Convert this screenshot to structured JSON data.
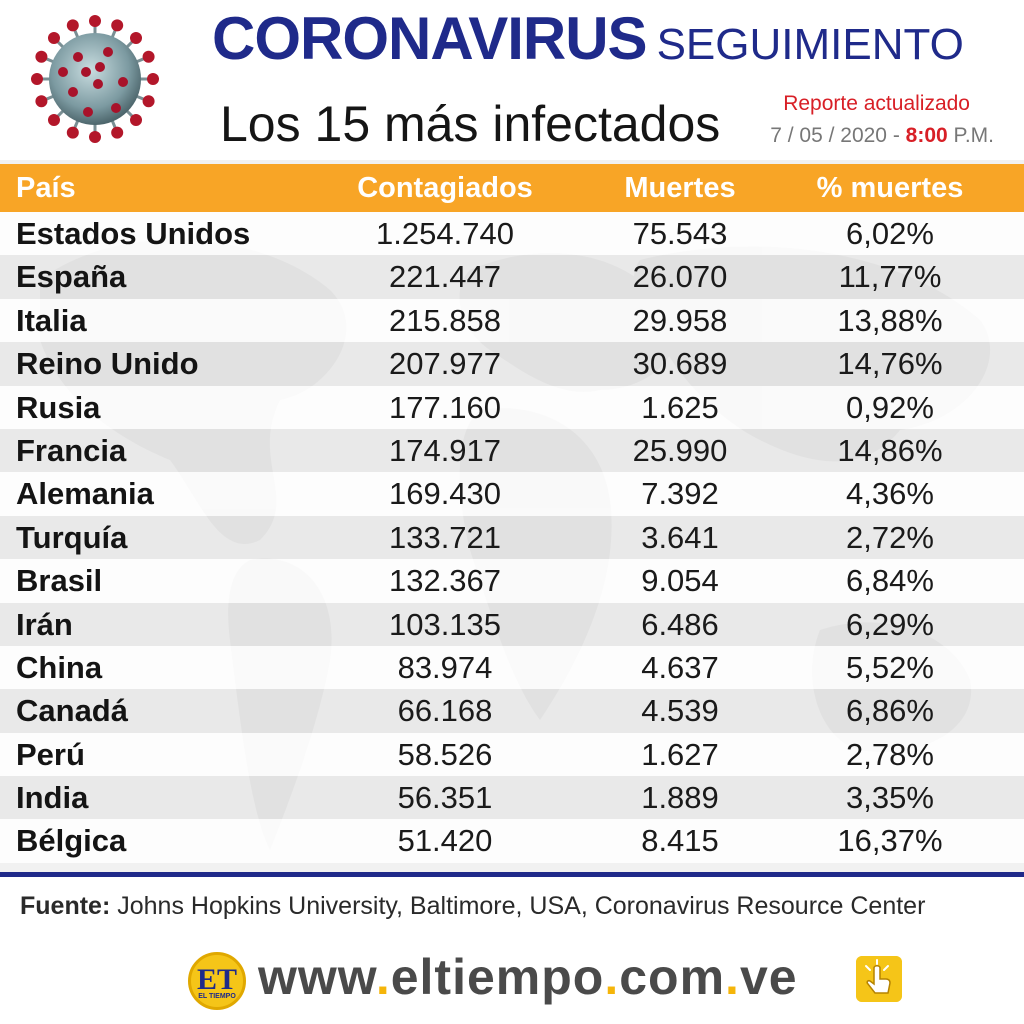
{
  "header": {
    "title_main": "CORONAVIRUS",
    "title_sub": "SEGUIMIENTO",
    "subtitle": "Los 15 más infectados",
    "report_label": "Reporte actualizado",
    "report_date": "7 / 05 / 2020 -",
    "report_time": "8:00",
    "report_ampm": "P.M.",
    "virus_image": "coronavirus-illustration"
  },
  "table": {
    "headers": {
      "country": "País",
      "confirmed": "Contagiados",
      "deaths": "Muertes",
      "death_pct": "% muertes"
    },
    "rows": [
      {
        "country": "Estados Unidos",
        "confirmed": "1.254.740",
        "deaths": "75.543",
        "death_pct": "6,02%"
      },
      {
        "country": "España",
        "confirmed": "221.447",
        "deaths": "26.070",
        "death_pct": "11,77%"
      },
      {
        "country": "Italia",
        "confirmed": "215.858",
        "deaths": "29.958",
        "death_pct": "13,88%"
      },
      {
        "country": "Reino Unido",
        "confirmed": "207.977",
        "deaths": "30.689",
        "death_pct": "14,76%"
      },
      {
        "country": "Rusia",
        "confirmed": "177.160",
        "deaths": "1.625",
        "death_pct": "0,92%"
      },
      {
        "country": "Francia",
        "confirmed": "174.917",
        "deaths": "25.990",
        "death_pct": "14,86%"
      },
      {
        "country": "Alemania",
        "confirmed": "169.430",
        "deaths": "7.392",
        "death_pct": "4,36%"
      },
      {
        "country": "Turquía",
        "confirmed": "133.721",
        "deaths": "3.641",
        "death_pct": "2,72%"
      },
      {
        "country": "Brasil",
        "confirmed": "132.367",
        "deaths": "9.054",
        "death_pct": "6,84%"
      },
      {
        "country": "Irán",
        "confirmed": "103.135",
        "deaths": "6.486",
        "death_pct": "6,29%"
      },
      {
        "country": "China",
        "confirmed": "83.974",
        "deaths": "4.637",
        "death_pct": "5,52%"
      },
      {
        "country": "Canadá",
        "confirmed": "66.168",
        "deaths": "4.539",
        "death_pct": "6,86%"
      },
      {
        "country": "Perú",
        "confirmed": "58.526",
        "deaths": "1.627",
        "death_pct": "2,78%"
      },
      {
        "country": "India",
        "confirmed": "56.351",
        "deaths": "1.889",
        "death_pct": "3,35%"
      },
      {
        "country": "Bélgica",
        "confirmed": "51.420",
        "deaths": "8.415",
        "death_pct": "16,37%"
      }
    ]
  },
  "footer": {
    "source_label": "Fuente:",
    "source_text": "Johns Hopkins University, Baltimore, USA, Coronavirus Resource Center",
    "logo_text": "ET",
    "logo_subtext": "EL TIEMPO",
    "url_part1": "www",
    "url_part2": "eltiempo",
    "url_part3": "com",
    "url_part4": "ve",
    "url_dot": ".",
    "click_icon": "hand-pointer-icon"
  },
  "colors": {
    "title_blue": "#1f2a8a",
    "header_orange": "#f8a526",
    "accent_red": "#d81f26",
    "logo_yellow": "#f5c518"
  }
}
